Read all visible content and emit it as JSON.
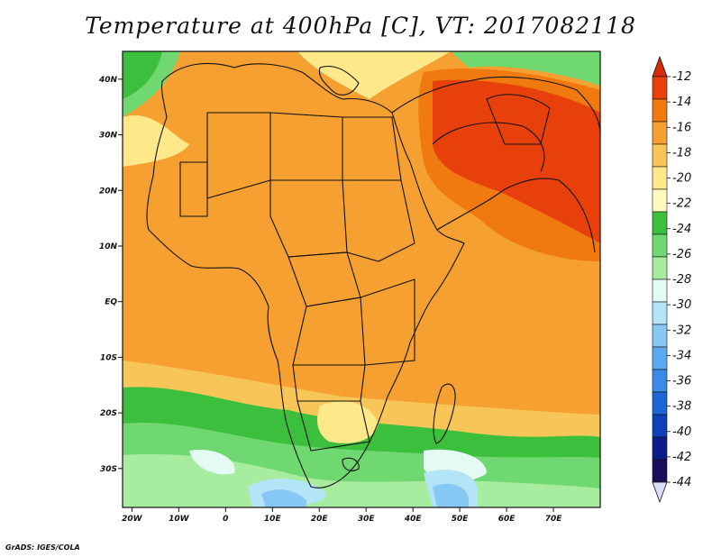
{
  "title": "Temperature at 400hPa [C], VT: 2017082118",
  "credit": "GrADS: IGES/COLA",
  "map": {
    "lon_ticks": [
      "20W",
      "10W",
      "0",
      "10E",
      "20E",
      "30E",
      "40E",
      "50E",
      "60E",
      "70E"
    ],
    "lat_ticks": [
      "40N",
      "30N",
      "20N",
      "10N",
      "EQ",
      "10S",
      "20S",
      "30S"
    ]
  },
  "colorbar": {
    "labels": [
      "-12",
      "-14",
      "-16",
      "-18",
      "-20",
      "-22",
      "-24",
      "-26",
      "-28",
      "-30",
      "-32",
      "-34",
      "-36",
      "-38",
      "-40",
      "-42",
      "-44"
    ],
    "colors": [
      "#e8400a",
      "#f07a10",
      "#f5a030",
      "#f8c658",
      "#fde88a",
      "#fffac0",
      "#3cbf3c",
      "#70d870",
      "#a8eca0",
      "#e4fbf4",
      "#b4e4f8",
      "#88c8f4",
      "#5caaf0",
      "#3a8ae8",
      "#1e66d8",
      "#1040b8",
      "#0c1c88",
      "#1c0c5c"
    ],
    "top_arrow_color": "#d82a0a",
    "bottom_arrow_color": "#dcdcff"
  }
}
